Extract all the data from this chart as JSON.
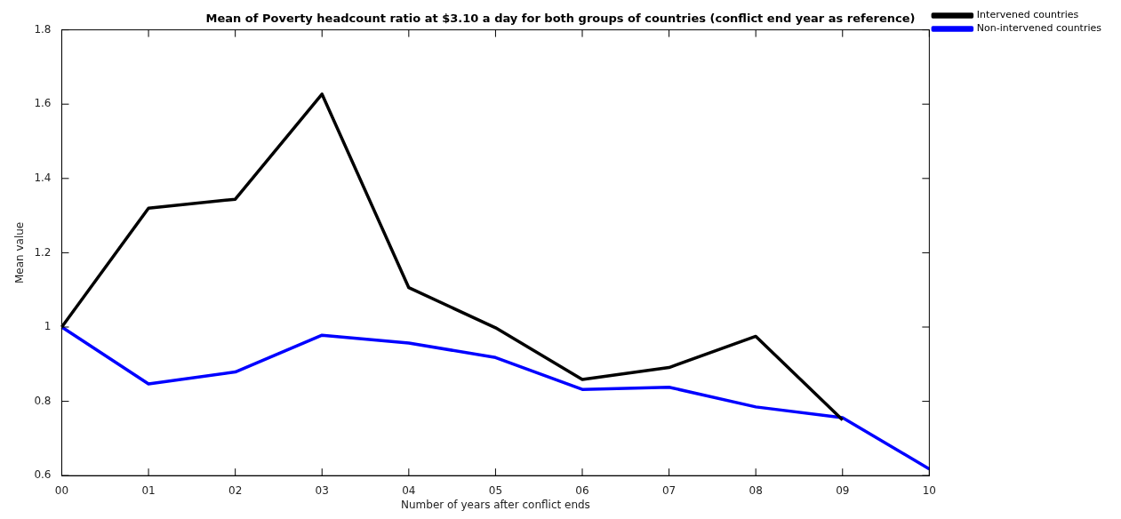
{
  "chart_data": {
    "type": "line",
    "title": "Mean of Poverty headcount ratio at $3.10 a day for both groups of countries (conflict end year as reference)",
    "xlabel": "Number of years after conflict ends",
    "ylabel": "Mean value",
    "categories": [
      "00",
      "01",
      "02",
      "03",
      "04",
      "05",
      "06",
      "07",
      "08",
      "09",
      "10"
    ],
    "series": [
      {
        "name": "Intervened countries",
        "color": "#000000",
        "values": [
          1.0,
          1.32,
          1.344,
          1.627,
          1.106,
          0.998,
          0.859,
          0.891,
          0.975,
          0.75,
          null
        ]
      },
      {
        "name": "Non-intervened countries",
        "color": "#0000ff",
        "values": [
          1.0,
          0.847,
          0.879,
          0.978,
          0.957,
          0.918,
          0.832,
          0.838,
          0.785,
          0.756,
          0.618
        ]
      }
    ],
    "ylim": [
      0.6,
      1.8
    ],
    "yticks": [
      0.6,
      0.8,
      1,
      1.2,
      1.4,
      1.6,
      1.8
    ],
    "grid": false,
    "legend": "top right",
    "marker": "none",
    "line_style": "solid"
  }
}
